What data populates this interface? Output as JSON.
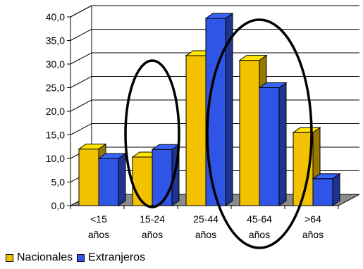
{
  "chart_data": {
    "type": "bar",
    "categories": [
      "<15 años",
      "15-24 años",
      "25-44 años",
      "45-64 años",
      ">64 años"
    ],
    "category_lines": [
      [
        "<15",
        "años"
      ],
      [
        "15-24",
        "años"
      ],
      [
        "25-44",
        "años"
      ],
      [
        "45-64",
        "años"
      ],
      [
        ">64",
        "años"
      ]
    ],
    "series": [
      {
        "name": "Nacionales",
        "values": [
          12.0,
          10.3,
          31.8,
          30.8,
          15.5
        ],
        "color": "#f2c200"
      },
      {
        "name": "Extranjeros",
        "values": [
          10.0,
          11.9,
          39.7,
          25.0,
          5.7
        ],
        "color": "#2f55e6"
      }
    ],
    "ylim": [
      0,
      40
    ],
    "yticks": [
      "0,0",
      "5,0",
      "10,0",
      "15,0",
      "20,0",
      "25,0",
      "30,0",
      "35,0",
      "40,0"
    ],
    "grid": true,
    "three_d": true,
    "legend_position": "bottom-left",
    "annotations": [
      "ellipse around 15-24 años",
      "ellipse around 45-64 años and >64 años"
    ]
  },
  "legend": {
    "nacionales": "Nacionales",
    "extranjeros": "Extranjeros",
    "nacionales_color": "#f2c200",
    "extranjeros_color": "#2f55e6"
  }
}
